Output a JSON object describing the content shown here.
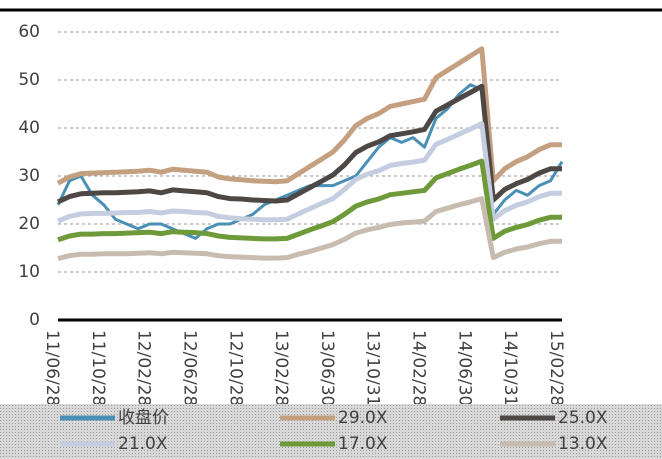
{
  "chart_data": {
    "type": "line",
    "categories": [
      "11/06/28",
      null,
      null,
      null,
      "11/10/28",
      null,
      null,
      null,
      "12/02/28",
      null,
      null,
      null,
      "12/06/28",
      null,
      null,
      null,
      "12/10/28",
      null,
      null,
      null,
      "13/02/28",
      null,
      null,
      null,
      "13/06/30",
      null,
      null,
      null,
      "13/10/31",
      null,
      null,
      null,
      "14/02/28",
      null,
      null,
      null,
      "14/06/30",
      null,
      null,
      null,
      "14/10/31",
      null,
      null,
      null,
      "15/02/28"
    ],
    "ylim": [
      0,
      60
    ],
    "yticks": [
      0,
      10,
      20,
      30,
      40,
      50,
      60
    ],
    "grid": true,
    "series": [
      {
        "name": "收盘价",
        "color": "#4a8fb5",
        "values": [
          24,
          29,
          30,
          26,
          24,
          21,
          20,
          19,
          20,
          20,
          19,
          18,
          17,
          19,
          20,
          20,
          21,
          22,
          24,
          25,
          26,
          27,
          28,
          28,
          28,
          29,
          30,
          33,
          36,
          38,
          37,
          38,
          36,
          42,
          44,
          47,
          49,
          48,
          22,
          25,
          27,
          26,
          28,
          29,
          33
        ]
      },
      {
        "name": "29.0X",
        "color": "#c4a080",
        "values": [
          28.5,
          29.8,
          30.5,
          30.6,
          30.7,
          30.8,
          30.9,
          31.0,
          31.2,
          30.8,
          31.4,
          31.2,
          31.0,
          30.8,
          29.8,
          29.4,
          29.2,
          29.0,
          28.9,
          28.8,
          29.0,
          30.5,
          32.0,
          33.5,
          35.0,
          37.5,
          40.5,
          42.0,
          43.0,
          44.5,
          45.0,
          45.5,
          46.0,
          50.5,
          52.0,
          53.5,
          55.0,
          56.5,
          29.0,
          31.5,
          33.0,
          34.0,
          35.5,
          36.5,
          36.5
        ]
      },
      {
        "name": "25.0X",
        "color": "#4d4845",
        "values": [
          24.6,
          25.7,
          26.3,
          26.4,
          26.5,
          26.5,
          26.6,
          26.7,
          26.9,
          26.5,
          27.1,
          26.9,
          26.7,
          26.5,
          25.7,
          25.3,
          25.2,
          25.0,
          24.9,
          24.8,
          25.0,
          26.3,
          27.6,
          28.9,
          30.2,
          32.3,
          34.9,
          36.2,
          37.1,
          38.4,
          38.8,
          39.2,
          39.7,
          43.5,
          44.8,
          46.1,
          47.4,
          48.7,
          25.0,
          27.2,
          28.4,
          29.3,
          30.6,
          31.5,
          31.5
        ]
      },
      {
        "name": "21.0X",
        "color": "#c5cde0",
        "values": [
          20.6,
          21.6,
          22.1,
          22.2,
          22.2,
          22.3,
          22.4,
          22.4,
          22.6,
          22.3,
          22.7,
          22.6,
          22.4,
          22.3,
          21.6,
          21.3,
          21.1,
          21.0,
          20.9,
          20.9,
          21.0,
          22.1,
          23.2,
          24.3,
          25.3,
          27.2,
          29.3,
          30.4,
          31.1,
          32.2,
          32.6,
          32.9,
          33.3,
          36.6,
          37.6,
          38.7,
          39.8,
          40.9,
          21.0,
          22.8,
          23.9,
          24.6,
          25.7,
          26.4,
          26.4
        ]
      },
      {
        "name": "17.0X",
        "color": "#6e9a3a",
        "values": [
          16.7,
          17.5,
          17.9,
          17.9,
          18.0,
          18.0,
          18.1,
          18.2,
          18.3,
          18.0,
          18.4,
          18.3,
          18.2,
          18.0,
          17.5,
          17.2,
          17.1,
          17.0,
          16.9,
          16.9,
          17.0,
          17.9,
          18.8,
          19.6,
          20.5,
          22.0,
          23.7,
          24.6,
          25.2,
          26.1,
          26.4,
          26.7,
          27.0,
          29.6,
          30.5,
          31.4,
          32.2,
          33.1,
          17.0,
          18.5,
          19.3,
          19.9,
          20.8,
          21.4,
          21.4
        ]
      },
      {
        "name": "13.0X",
        "color": "#c8bcb0",
        "values": [
          12.8,
          13.4,
          13.7,
          13.7,
          13.8,
          13.8,
          13.8,
          13.9,
          14.0,
          13.8,
          14.1,
          14.0,
          13.9,
          13.8,
          13.4,
          13.2,
          13.1,
          13.0,
          12.9,
          12.9,
          13.0,
          13.7,
          14.3,
          15.0,
          15.7,
          16.8,
          18.1,
          18.8,
          19.3,
          19.9,
          20.2,
          20.4,
          20.6,
          22.6,
          23.3,
          24.0,
          24.6,
          25.3,
          13.0,
          14.1,
          14.8,
          15.2,
          15.9,
          16.4,
          16.4
        ]
      }
    ]
  }
}
